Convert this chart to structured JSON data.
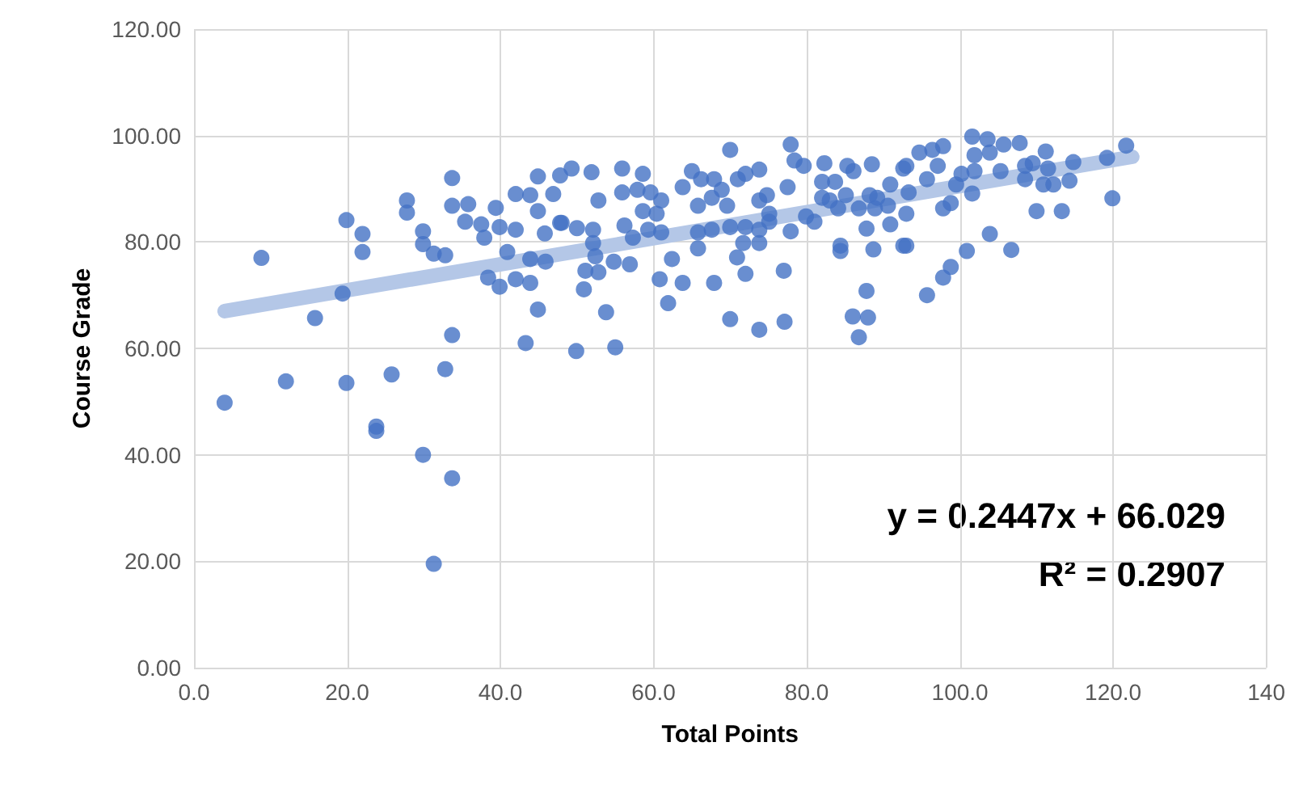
{
  "chart_data": {
    "type": "scatter",
    "xlabel": "Total Points",
    "ylabel": "Course Grade",
    "xlim": [
      0,
      140
    ],
    "ylim": [
      0,
      120
    ],
    "xticks": [
      {
        "value": 0,
        "label": "0.0"
      },
      {
        "value": 20,
        "label": "20.0"
      },
      {
        "value": 40,
        "label": "40.0"
      },
      {
        "value": 60,
        "label": "60.0"
      },
      {
        "value": 80,
        "label": "80.0"
      },
      {
        "value": 100,
        "label": "100.0"
      },
      {
        "value": 120,
        "label": "120.0"
      },
      140
    ],
    "yticks": [
      {
        "value": 0,
        "label": "0.00"
      },
      {
        "value": 20,
        "label": "20.00"
      },
      {
        "value": 40,
        "label": "40.00"
      },
      {
        "value": 60,
        "label": "60.00"
      },
      {
        "value": 80,
        "label": "80.00"
      },
      {
        "value": 100,
        "label": "100.00"
      },
      {
        "value": 120,
        "label": "120.00"
      }
    ],
    "grid": true,
    "annotations": [
      "y = 0.2447x + 66.029",
      "R² = 0.2907"
    ],
    "series": [
      {
        "color": "#4472c4",
        "marker": "circle",
        "x": [
          4.0,
          8.8,
          12.0,
          15.8,
          19.4,
          19.9,
          19.9,
          22.0,
          22.0,
          23.8,
          23.8,
          25.8,
          27.8,
          27.8,
          29.9,
          29.9,
          29.9,
          31.3,
          32.8,
          31.3,
          32.8,
          33.7,
          33.7,
          33.7,
          33.7,
          35.8,
          35.4,
          37.5,
          37.9,
          38.4,
          39.9,
          39.4,
          39.9,
          40.9,
          42.0,
          42.0,
          42.0,
          43.3,
          43.9,
          43.9,
          44.9,
          44.9,
          43.9,
          44.9,
          45.8,
          45.9,
          46.9,
          47.8,
          47.8,
          49.3,
          51.9,
          52.8,
          48.0,
          50.0,
          52.1,
          52.1,
          52.4,
          51.1,
          52.8,
          50.9,
          53.8,
          49.9,
          55.0,
          55.9,
          58.6,
          55.9,
          57.9,
          59.6,
          61.0,
          58.6,
          60.4,
          56.2,
          57.3,
          59.3,
          54.8,
          56.9,
          61.0,
          62.4,
          60.8,
          63.8,
          61.9,
          63.8,
          65.0,
          66.2,
          67.9,
          65.8,
          67.6,
          69.6,
          65.8,
          67.6,
          65.8,
          70.0,
          68.9,
          71.0,
          72.0,
          73.8,
          70.0,
          72.0,
          73.8,
          75.1,
          73.8,
          74.8,
          75.1,
          71.7,
          73.8,
          67.9,
          70.9,
          72.0,
          70.0,
          73.8,
          77.1,
          77.0,
          77.9,
          78.4,
          79.6,
          77.5,
          77.9,
          79.9,
          81.0,
          82.3,
          82.0,
          83.7,
          82.0,
          83.0,
          84.1,
          85.1,
          84.4,
          84.4,
          85.3,
          86.1,
          88.5,
          86.8,
          88.2,
          88.9,
          87.8,
          88.7,
          87.8,
          86.0,
          88.0,
          86.8,
          90.9,
          90.9,
          92.6,
          92.6,
          89.2,
          90.6,
          93.0,
          93.3,
          93.0,
          93.0,
          94.7,
          96.4,
          97.8,
          97.1,
          95.7,
          97.8,
          98.8,
          99.5,
          100.9,
          98.8,
          97.8,
          95.7,
          101.6,
          101.9,
          103.6,
          103.9,
          105.7,
          107.8,
          100.2,
          101.9,
          105.3,
          101.6,
          103.9,
          106.7,
          108.5,
          109.5,
          108.5,
          111.2,
          111.5,
          110.9,
          112.2,
          114.3,
          114.8,
          110.0,
          113.3,
          119.2,
          121.7,
          119.9
        ],
        "values": [
          49.8,
          77.0,
          53.8,
          65.7,
          70.3,
          84.1,
          53.5,
          81.5,
          78.1,
          45.3,
          44.5,
          55.1,
          87.8,
          85.5,
          82.0,
          79.6,
          40.0,
          77.8,
          77.5,
          19.5,
          56.1,
          92.0,
          86.8,
          62.5,
          35.6,
          87.1,
          83.8,
          83.3,
          80.8,
          73.3,
          71.6,
          86.4,
          82.8,
          78.1,
          89.0,
          82.3,
          73.0,
          61.0,
          76.8,
          72.3,
          67.3,
          92.3,
          88.8,
          85.8,
          81.6,
          76.3,
          89.0,
          83.6,
          92.5,
          93.8,
          93.1,
          87.8,
          83.6,
          82.6,
          82.3,
          79.8,
          77.3,
          74.6,
          74.3,
          71.1,
          66.8,
          59.5,
          60.2,
          93.8,
          92.8,
          89.3,
          89.8,
          89.3,
          87.8,
          85.8,
          85.3,
          83.1,
          80.8,
          82.3,
          76.3,
          75.8,
          81.8,
          76.8,
          73.0,
          72.3,
          68.5,
          90.3,
          93.3,
          91.8,
          91.8,
          86.8,
          88.3,
          86.8,
          81.8,
          82.3,
          78.8,
          97.3,
          89.8,
          91.8,
          92.8,
          93.6,
          82.8,
          82.8,
          82.3,
          83.8,
          87.8,
          88.8,
          85.3,
          79.8,
          79.8,
          72.3,
          77.1,
          74.0,
          65.5,
          63.5,
          65.0,
          74.6,
          98.3,
          95.3,
          94.3,
          90.3,
          82.0,
          84.8,
          83.8,
          94.8,
          91.3,
          91.3,
          88.3,
          87.8,
          86.3,
          88.8,
          79.3,
          78.3,
          94.3,
          93.3,
          94.6,
          86.3,
          88.8,
          86.3,
          82.5,
          78.6,
          70.8,
          66.0,
          65.8,
          62.1,
          90.8,
          83.3,
          93.8,
          79.3,
          88.3,
          86.8,
          94.3,
          89.3,
          85.3,
          79.3,
          96.8,
          97.3,
          98.0,
          94.3,
          91.8,
          86.3,
          87.3,
          90.8,
          78.3,
          75.3,
          73.3,
          70.0,
          99.8,
          96.3,
          99.3,
          96.8,
          98.3,
          98.6,
          92.8,
          93.3,
          93.3,
          89.1,
          81.5,
          78.5,
          94.3,
          94.8,
          91.8,
          97.0,
          93.8,
          90.8,
          90.8,
          91.5,
          95.0,
          85.8,
          85.8,
          95.8,
          98.1,
          88.2
        ]
      },
      {
        "type": "line",
        "color": "#b4c7e7",
        "marker": "none",
        "line_style": "solid",
        "x": [
          4,
          122.5
        ],
        "values": [
          67.0,
          96.0
        ]
      }
    ]
  }
}
